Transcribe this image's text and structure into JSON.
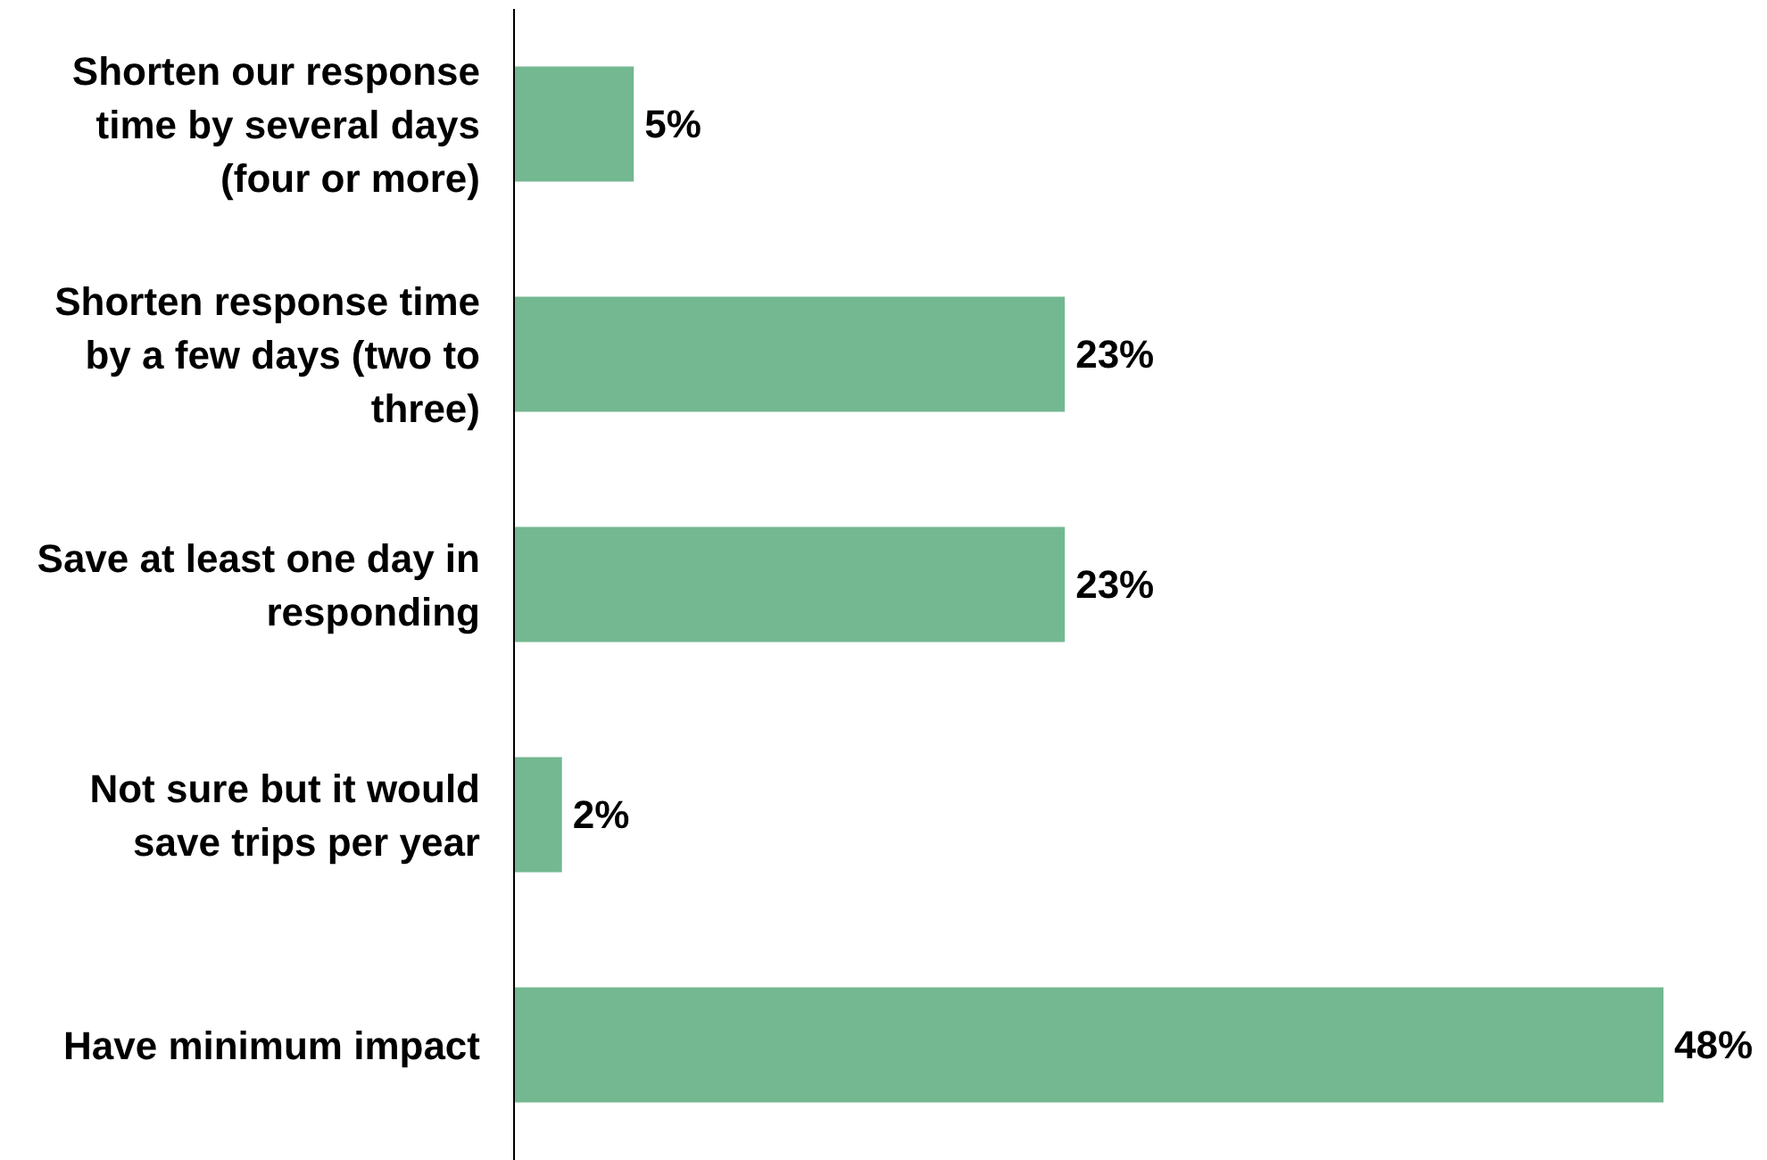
{
  "chart_data": {
    "type": "bar",
    "orientation": "horizontal",
    "categories": [
      "Shorten our response time by several days (four or more)",
      "Shorten response time by a few days (two to three)",
      "Save at least one day in responding",
      "Not sure but it would save trips per year",
      "Have minimum impact"
    ],
    "values": [
      5,
      23,
      23,
      2,
      48
    ],
    "value_labels": [
      "5%",
      "23%",
      "23%",
      "2%",
      "48%"
    ],
    "color": "#73b891"
  }
}
